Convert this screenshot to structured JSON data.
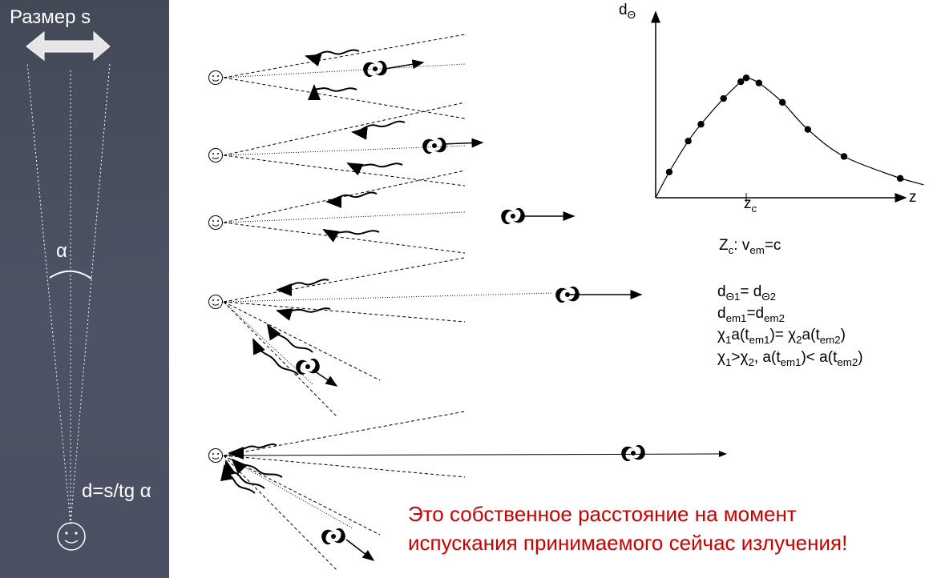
{
  "left": {
    "size_label": "Размер s",
    "angle_label": "α",
    "distance_label": "d=s/tg α"
  },
  "chart": {
    "y_axis": "d",
    "y_axis_sub": "Θ",
    "x_axis": "z",
    "tick": "z",
    "tick_sub": "c",
    "zc_line": {
      "a": "Z",
      "a_sub": "c",
      "b": ": v",
      "b_sub": "em",
      "c": "=c"
    }
  },
  "formulas": {
    "f1": {
      "a": "d",
      "a_sub": "Θ1",
      "b": "= d",
      "b_sub": "Θ2"
    },
    "f2": {
      "a": "d",
      "a_sub": "em1",
      "b": "=d",
      "b_sub": "em2"
    },
    "f3": {
      "a": "χ",
      "a_sub": "1",
      "b": "a(t",
      "b_sub": "em1",
      "c": ")= χ",
      "c_sub": "2",
      "d": "a(t",
      "d_sub": "em2",
      "e": ")"
    },
    "f4": {
      "a": "χ",
      "a_sub": "1",
      "b": ">χ",
      "b_sub": "2",
      "c": ", a(t",
      "c_sub": "em1",
      "d": ")< a(t",
      "d_sub": "em2",
      "e": ")"
    }
  },
  "note": {
    "line1": "Это собственное расстояние на момент",
    "line2": "испускания принимаемого сейчас излучения!"
  },
  "colors": {
    "panel": "#484e5e",
    "note": "#cc0000"
  },
  "chart_data": {
    "type": "scatter",
    "title": "",
    "xlabel": "z",
    "ylabel": "dΘ",
    "x_tick_labels": [
      "zc"
    ],
    "series": [
      {
        "points": [
          [
            0.15,
            0.2
          ],
          [
            0.36,
            0.44
          ],
          [
            0.5,
            0.57
          ],
          [
            0.75,
            0.77
          ],
          [
            0.94,
            0.9
          ],
          [
            1.0,
            0.93
          ],
          [
            1.14,
            0.89
          ],
          [
            1.4,
            0.74
          ],
          [
            1.68,
            0.53
          ],
          [
            2.08,
            0.32
          ],
          [
            2.7,
            0.15
          ]
        ]
      }
    ],
    "curve": "smooth fit through points, peak at zc",
    "grid": false
  }
}
